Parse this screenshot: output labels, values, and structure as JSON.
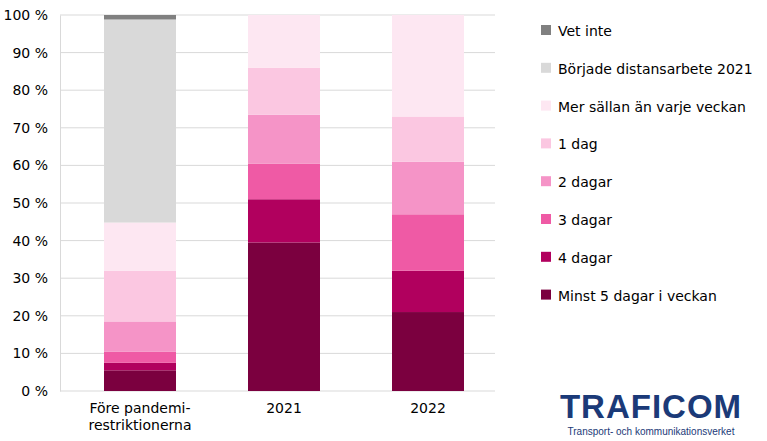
{
  "chart_data": {
    "type": "bar",
    "stacked": true,
    "grid": true,
    "legend": "right",
    "categories": [
      "Före pandemi-\nrestriktionerna",
      "2021",
      "2022"
    ],
    "series": [
      {
        "name": "Minst 5 dagar i veckan",
        "color": "#7b003f",
        "values": [
          5.5,
          39.5,
          21
        ]
      },
      {
        "name": "4 dagar",
        "color": "#b1005e",
        "values": [
          2,
          11.5,
          11
        ]
      },
      {
        "name": "3 dagar",
        "color": "#ef5aa5",
        "values": [
          3,
          9.5,
          15
        ]
      },
      {
        "name": "2 dagar",
        "color": "#f594c7",
        "values": [
          8,
          13,
          14
        ]
      },
      {
        "name": "1 dag",
        "color": "#fbc7e1",
        "values": [
          13.5,
          12.5,
          12
        ]
      },
      {
        "name": "Mer sällan än varje veckan",
        "color": "#fde7f2",
        "values": [
          12.8,
          14,
          27
        ]
      },
      {
        "name": "Började distansarbete 2021",
        "color": "#d9d9d9",
        "values": [
          54,
          0,
          0
        ]
      },
      {
        "name": "Vet inte",
        "color": "#808080",
        "values": [
          1.2,
          0,
          0
        ]
      }
    ],
    "ylim": [
      0,
      100
    ],
    "yticks": [
      {
        "value": 0,
        "label": "0 %"
      },
      {
        "value": 10,
        "label": "10 %"
      },
      {
        "value": 20,
        "label": "20 %"
      },
      {
        "value": 30,
        "label": "30 %"
      },
      {
        "value": 40,
        "label": "40 %"
      },
      {
        "value": 50,
        "label": "50 %"
      },
      {
        "value": 60,
        "label": "60 %"
      },
      {
        "value": 70,
        "label": "70 %"
      },
      {
        "value": 80,
        "label": "80 %"
      },
      {
        "value": 90,
        "label": "90 %"
      },
      {
        "value": 100,
        "label": "100 %"
      }
    ],
    "annotations": [
      "TRAFICOM",
      "Transport- och kommunikationsverket"
    ]
  }
}
